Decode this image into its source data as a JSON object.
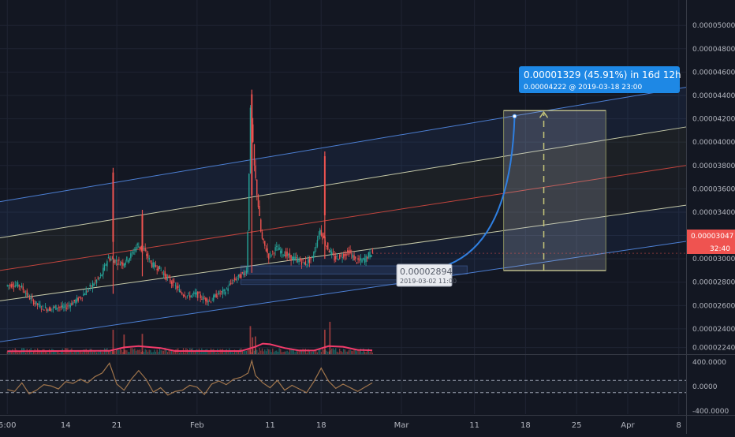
{
  "colors": {
    "background": "#131722",
    "grid": "#1f2433",
    "axis_text": "#b2b5be",
    "candle_up": "#26a69a",
    "candle_down": "#ef5350",
    "channel_outer": "#4c7fd3",
    "channel_inner": "#c5c9a8",
    "channel_mid": "#c0443d",
    "projection_curve": "#2f7fe0",
    "callout_fill": "#1e88e5",
    "price_badge": "#ef5350",
    "ma_line": "#f23b6a",
    "oscillator_line": "#a0754c",
    "oscillator_band": "#9aa0b0"
  },
  "chart_data": {
    "type": "candlestick",
    "x_ticks": [
      {
        "label": "5:00",
        "day": 0
      },
      {
        "label": "14",
        "day": 8
      },
      {
        "label": "21",
        "day": 15
      },
      {
        "label": "Feb",
        "day": 26
      },
      {
        "label": "11",
        "day": 36
      },
      {
        "label": "18",
        "day": 43
      },
      {
        "label": "Mar",
        "day": 54
      },
      {
        "label": "11",
        "day": 64
      },
      {
        "label": "18",
        "day": 71
      },
      {
        "label": "25",
        "day": 78
      },
      {
        "label": "Apr",
        "day": 85
      },
      {
        "label": "8",
        "day": 92
      }
    ],
    "price_ticks": [
      "0.00005000",
      "0.00004800",
      "0.00004600",
      "0.00004400",
      "0.00004200",
      "0.00004000",
      "0.00003800",
      "0.00003600",
      "0.00003400",
      "0.00003200",
      "0.00003000",
      "0.00002800",
      "0.00002600",
      "0.00002400",
      "0.00002240"
    ],
    "price_range": [
      2.19e-05,
      5.15e-05
    ],
    "day_range": [
      -1,
      93
    ],
    "current_price": "0.00003047",
    "current_price_value": 3.047e-05,
    "countdown": "32:40",
    "price_path": [
      [
        0,
        2.77e-05
      ],
      [
        1,
        2.78e-05
      ],
      [
        2,
        2.77e-05
      ],
      [
        3,
        2.68e-05
      ],
      [
        4,
        2.62e-05
      ],
      [
        5,
        2.58e-05
      ],
      [
        6,
        2.57e-05
      ],
      [
        7,
        2.59e-05
      ],
      [
        8,
        2.58e-05
      ],
      [
        9,
        2.62e-05
      ],
      [
        10,
        2.66e-05
      ],
      [
        11,
        2.72e-05
      ],
      [
        12,
        2.79e-05
      ],
      [
        13,
        2.85e-05
      ],
      [
        14,
        3.01e-05
      ],
      [
        15,
        2.98e-05
      ],
      [
        16,
        2.96e-05
      ],
      [
        17,
        3.02e-05
      ],
      [
        18,
        3.12e-05
      ],
      [
        19,
        3.06e-05
      ],
      [
        20,
        2.95e-05
      ],
      [
        21,
        2.92e-05
      ],
      [
        22,
        2.84e-05
      ],
      [
        23,
        2.78e-05
      ],
      [
        24,
        2.71e-05
      ],
      [
        25,
        2.68e-05
      ],
      [
        26,
        2.7e-05
      ],
      [
        27,
        2.66e-05
      ],
      [
        28,
        2.64e-05
      ],
      [
        29,
        2.7e-05
      ],
      [
        30,
        2.72e-05
      ],
      [
        31,
        2.81e-05
      ],
      [
        32,
        2.85e-05
      ],
      [
        33,
        2.9e-05
      ],
      [
        33.5,
        4.32e-05
      ],
      [
        34,
        3.8e-05
      ],
      [
        35,
        3.18e-05
      ],
      [
        36,
        3.02e-05
      ],
      [
        37,
        3.09e-05
      ],
      [
        38,
        3.05e-05
      ],
      [
        39,
        3.01e-05
      ],
      [
        40,
        2.99e-05
      ],
      [
        41,
        2.96e-05
      ],
      [
        42,
        3.01e-05
      ],
      [
        43,
        3.25e-05
      ],
      [
        44,
        3.1e-05
      ],
      [
        45,
        3e-05
      ],
      [
        46,
        3.03e-05
      ],
      [
        47,
        3.06e-05
      ],
      [
        48,
        2.98e-05
      ],
      [
        49,
        2.99e-05
      ],
      [
        50,
        3.05e-05
      ]
    ],
    "spikes": [
      {
        "day": 14.5,
        "high": 3.78e-05,
        "low": 2.7e-05
      },
      {
        "day": 18.5,
        "high": 3.42e-05,
        "low": 2.85e-05
      },
      {
        "day": 33.5,
        "high": 4.45e-05,
        "low": 2.88e-05
      },
      {
        "day": 43.5,
        "high": 3.92e-05,
        "low": 3e-05
      }
    ],
    "channel": {
      "start_day": -1,
      "end_day": 93,
      "upper": [
        3.49e-05,
        4.47e-05
      ],
      "inner_upper": [
        3.18e-05,
        4.13e-05
      ],
      "middle": [
        2.9e-05,
        3.8e-05
      ],
      "inner_lower": [
        2.64e-05,
        3.46e-05
      ],
      "lower": [
        2.29e-05,
        3.15e-05
      ]
    },
    "projection": {
      "start_day": 55.5,
      "start_price": 2.894e-05,
      "end_day": 69.5,
      "end_price": 4.222e-05,
      "box_left_day": 68,
      "box_right_day": 82,
      "box_top": 4.27e-05,
      "box_bottom": 2.9e-05,
      "target_day": 73.5
    },
    "callouts": {
      "target_line1": "0.00001329 (45.91%) in 16d 12h",
      "target_line2": "0.00004222 @ 2019-03-18  23:00",
      "low_line1": "0.00002894",
      "low_line2": "2019-03-02 11:00"
    },
    "consolidation_box": {
      "left_day": 32,
      "right_day": 63,
      "top": 2.94e-05,
      "bottom": 2.87e-05
    },
    "lower_box": {
      "left_day": 32,
      "right_day": 55,
      "top": 2.82e-05,
      "bottom": 2.78e-05
    },
    "volume": {
      "ma_points": [
        [
          0,
          0.05
        ],
        [
          14,
          0.08
        ],
        [
          16,
          0.35
        ],
        [
          18,
          0.45
        ],
        [
          19,
          0.4
        ],
        [
          21,
          0.3
        ],
        [
          23,
          0.06
        ],
        [
          32,
          0.06
        ],
        [
          34,
          0.4
        ],
        [
          35,
          0.65
        ],
        [
          36,
          0.6
        ],
        [
          38,
          0.3
        ],
        [
          40,
          0.1
        ],
        [
          42,
          0.1
        ],
        [
          44,
          0.45
        ],
        [
          46,
          0.4
        ],
        [
          48,
          0.15
        ],
        [
          50,
          0.12
        ]
      ],
      "spike_days": [
        14.5,
        16,
        18.5,
        33.3,
        33.6,
        34,
        43.5,
        44.2
      ]
    },
    "oscillator": {
      "ticks": [
        "400.0000",
        "0.0000",
        "-400.0000"
      ],
      "range": [
        -450,
        450
      ],
      "band_upper": 100,
      "band_lower": -100,
      "series": [
        [
          0,
          -50
        ],
        [
          1,
          -80
        ],
        [
          2,
          60
        ],
        [
          3,
          -120
        ],
        [
          4,
          -60
        ],
        [
          5,
          30
        ],
        [
          6,
          10
        ],
        [
          7,
          -40
        ],
        [
          8,
          80
        ],
        [
          9,
          50
        ],
        [
          10,
          120
        ],
        [
          11,
          60
        ],
        [
          12,
          160
        ],
        [
          13,
          220
        ],
        [
          14,
          380
        ],
        [
          15,
          40
        ],
        [
          16,
          -60
        ],
        [
          17,
          120
        ],
        [
          18,
          260
        ],
        [
          19,
          120
        ],
        [
          20,
          -90
        ],
        [
          21,
          -20
        ],
        [
          22,
          -140
        ],
        [
          23,
          -80
        ],
        [
          24,
          -60
        ],
        [
          25,
          20
        ],
        [
          26,
          -10
        ],
        [
          27,
          -130
        ],
        [
          28,
          40
        ],
        [
          29,
          90
        ],
        [
          30,
          30
        ],
        [
          31,
          120
        ],
        [
          32,
          150
        ],
        [
          33,
          220
        ],
        [
          33.5,
          420
        ],
        [
          34,
          180
        ],
        [
          35,
          60
        ],
        [
          36,
          -20
        ],
        [
          37,
          100
        ],
        [
          38,
          -60
        ],
        [
          39,
          20
        ],
        [
          40,
          -40
        ],
        [
          41,
          -100
        ],
        [
          42,
          80
        ],
        [
          43,
          300
        ],
        [
          44,
          90
        ],
        [
          45,
          -30
        ],
        [
          46,
          40
        ],
        [
          47,
          -20
        ],
        [
          48,
          -80
        ],
        [
          49,
          -10
        ],
        [
          50,
          60
        ]
      ]
    }
  }
}
